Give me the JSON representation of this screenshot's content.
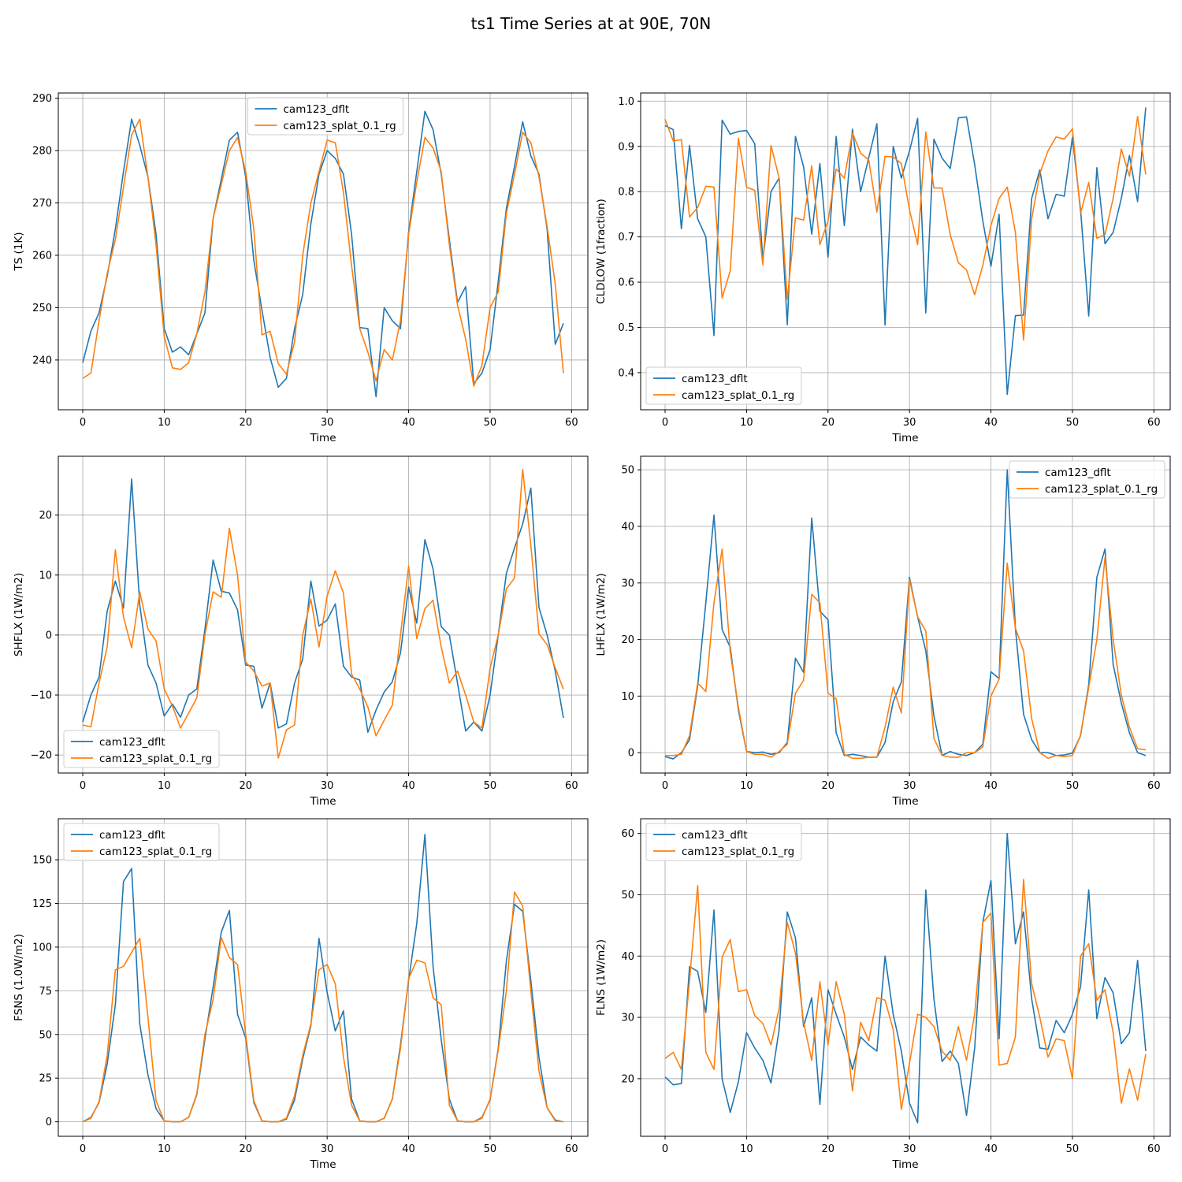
{
  "chart_data": {
    "title": "ts1 Time Series at at 90E, 70N",
    "legend_labels": [
      "cam123_dflt",
      "cam123_splat_0.1_rg"
    ],
    "colors": {
      "dflt": "#1f77b4",
      "splat": "#ff7f0e"
    },
    "panels": [
      {
        "type": "line",
        "ylabel": "TS (1K)",
        "xlabel": "Time",
        "xlim": [
          -3,
          62
        ],
        "ylim": [
          230.5,
          291
        ],
        "xticks": [
          0,
          10,
          20,
          30,
          40,
          50,
          60
        ],
        "yticks": [
          240,
          250,
          260,
          270,
          280,
          290
        ],
        "grid": true,
        "legend_loc": "upper center",
        "series": [
          {
            "name": "cam123_dflt",
            "values": [
              239.5,
              245.5,
              249,
              256,
              265,
              276,
              286,
              281,
              275,
              264,
              246,
              241.5,
              242.5,
              241,
              245,
              249,
              267,
              274.5,
              282,
              283.5,
              275,
              259,
              249.5,
              240.5,
              234.8,
              236.5,
              246,
              252.5,
              266,
              275.5,
              280,
              278.5,
              275.5,
              264,
              246.2,
              246,
              233,
              250,
              247.5,
              246,
              264.5,
              276,
              287.5,
              284,
              275.5,
              263,
              251,
              254,
              235.5,
              237.5,
              242,
              255,
              269,
              277,
              285.5,
              279,
              275.5,
              265,
              243,
              247
            ]
          },
          {
            "name": "cam123_splat_0.1_rg",
            "values": [
              236.5,
              237.5,
              247.5,
              256.5,
              263,
              273,
              283,
              286,
              275,
              262,
              244.5,
              238.5,
              238.2,
              239.5,
              245,
              253,
              267,
              273.5,
              280,
              282.5,
              276,
              265,
              244.8,
              245.5,
              239.3,
              237.3,
              243.5,
              260,
              270,
              276,
              282,
              281.5,
              272,
              258,
              246,
              241.5,
              236,
              242,
              240,
              247.5,
              264,
              274,
              282.5,
              280.5,
              276,
              262,
              250.5,
              244,
              235,
              239,
              250,
              253,
              268,
              275.5,
              283.5,
              281.5,
              275,
              265.5,
              254.5,
              237.5
            ]
          }
        ]
      },
      {
        "type": "line",
        "ylabel": "CLDLOW (1fraction)",
        "xlabel": "Time",
        "xlim": [
          -3,
          62
        ],
        "ylim": [
          0.318,
          1.018
        ],
        "xticks": [
          0,
          10,
          20,
          30,
          40,
          50,
          60
        ],
        "yticks": [
          0.4,
          0.5,
          0.6,
          0.7,
          0.8,
          0.9,
          1.0
        ],
        "ytick_labels": [
          "0.4",
          "0.5",
          "0.6",
          "0.7",
          "0.8",
          "0.9",
          "1.0"
        ],
        "grid": true,
        "legend_loc": "lower left",
        "series": [
          {
            "name": "cam123_dflt",
            "values": [
              0.946,
              0.937,
              0.718,
              0.902,
              0.74,
              0.7,
              0.482,
              0.958,
              0.927,
              0.933,
              0.935,
              0.906,
              0.65,
              0.8,
              0.83,
              0.506,
              0.922,
              0.855,
              0.706,
              0.862,
              0.655,
              0.922,
              0.725,
              0.938,
              0.8,
              0.875,
              0.95,
              0.505,
              0.9,
              0.83,
              0.89,
              0.962,
              0.532,
              0.916,
              0.874,
              0.851,
              0.963,
              0.965,
              0.86,
              0.735,
              0.635,
              0.75,
              0.352,
              0.526,
              0.527,
              0.785,
              0.848,
              0.74,
              0.794,
              0.79,
              0.92,
              0.76,
              0.525,
              0.853,
              0.685,
              0.71,
              0.785,
              0.88,
              0.778,
              0.986
            ]
          },
          {
            "name": "cam123_splat_0.1_rg",
            "values": [
              0.96,
              0.912,
              0.915,
              0.744,
              0.765,
              0.812,
              0.81,
              0.565,
              0.625,
              0.918,
              0.81,
              0.803,
              0.638,
              0.902,
              0.83,
              0.562,
              0.742,
              0.737,
              0.857,
              0.683,
              0.735,
              0.85,
              0.83,
              0.93,
              0.885,
              0.87,
              0.755,
              0.878,
              0.877,
              0.862,
              0.76,
              0.683,
              0.932,
              0.808,
              0.808,
              0.705,
              0.643,
              0.627,
              0.572,
              0.637,
              0.725,
              0.785,
              0.81,
              0.71,
              0.472,
              0.74,
              0.84,
              0.89,
              0.921,
              0.916,
              0.939,
              0.752,
              0.82,
              0.697,
              0.705,
              0.785,
              0.894,
              0.834,
              0.966,
              0.838
            ]
          }
        ]
      },
      {
        "type": "line",
        "ylabel": "SHFLX (1W/m2)",
        "xlabel": "Time",
        "xlim": [
          -3,
          62
        ],
        "ylim": [
          -23,
          29.8
        ],
        "xticks": [
          0,
          10,
          20,
          30,
          40,
          50,
          60
        ],
        "yticks": [
          -20,
          -10,
          0,
          10,
          20
        ],
        "ytick_labels": [
          "−20",
          "−10",
          "0",
          "10",
          "20"
        ],
        "grid": true,
        "legend_loc": "lower left",
        "series": [
          {
            "name": "cam123_dflt",
            "values": [
              -14.5,
              -10,
              -7,
              4,
              9,
              4.5,
              26,
              5,
              -5,
              -8,
              -13.5,
              -11.5,
              -13.7,
              -10,
              -9,
              1,
              12.5,
              7.3,
              7,
              4.2,
              -5,
              -5.2,
              -12.2,
              -8,
              -15.5,
              -14.8,
              -8,
              -4,
              9,
              1.5,
              2.5,
              5.2,
              -5.2,
              -7,
              -7.5,
              -16.2,
              -12.5,
              -9.5,
              -7.8,
              -3,
              8,
              2,
              15.9,
              11,
              1.4,
              0,
              -8,
              -16,
              -14.5,
              -16,
              -10,
              0,
              10.3,
              14.5,
              18.5,
              24.5,
              4.6,
              0,
              -6,
              -13.8
            ]
          },
          {
            "name": "cam123_splat_0.1_rg",
            "values": [
              -15,
              -15.3,
              -8,
              -2,
              14.2,
              3,
              -2.1,
              7.2,
              1,
              -1,
              -9,
              -11.8,
              -15.5,
              -13,
              -10.5,
              0,
              7.2,
              6.3,
              17.8,
              10,
              -4.5,
              -6,
              -8.5,
              -8,
              -20.5,
              -15.8,
              -15,
              0,
              6,
              -2,
              6.5,
              10.7,
              7,
              -6.5,
              -9,
              -12,
              -16.8,
              -14.2,
              -11.7,
              0,
              11.5,
              -0.6,
              4.4,
              5.8,
              -2,
              -8,
              -6,
              -10,
              -14.5,
              -15.5,
              -5.5,
              0,
              7.7,
              9.5,
              27.6,
              15,
              0.2,
              -1.6,
              -5.5,
              -9
            ]
          }
        ]
      },
      {
        "type": "line",
        "ylabel": "LHFLX (1W/m2)",
        "xlabel": "Time",
        "xlim": [
          -3,
          62
        ],
        "ylim": [
          -3.6,
          52.4
        ],
        "xticks": [
          0,
          10,
          20,
          30,
          40,
          50,
          60
        ],
        "yticks": [
          0,
          10,
          20,
          30,
          40,
          50
        ],
        "grid": true,
        "legend_loc": "upper right",
        "series": [
          {
            "name": "cam123_dflt",
            "values": [
              -0.7,
              -1.1,
              0,
              2.3,
              11.8,
              26.5,
              42,
              21.8,
              18.6,
              7.5,
              0.2,
              0,
              0.1,
              -0.3,
              0,
              1.8,
              16.7,
              14.2,
              41.5,
              25,
              23.5,
              3.5,
              -0.5,
              -0.3,
              -0.5,
              -0.8,
              -0.8,
              1.8,
              9,
              12.5,
              31,
              24,
              18,
              6.5,
              -0.5,
              0.2,
              -0.3,
              -0.5,
              0,
              1.5,
              14.3,
              13.1,
              50,
              22,
              6.8,
              2.3,
              0,
              0,
              -0.5,
              -0.4,
              -0.1,
              3,
              12,
              31,
              36,
              15.6,
              8.8,
              3.5,
              0,
              -0.5
            ]
          },
          {
            "name": "cam123_splat_0.1_rg",
            "values": [
              -0.5,
              -0.5,
              -0.3,
              3,
              12.3,
              10.8,
              26.5,
              36,
              17.8,
              8,
              0.2,
              -0.3,
              -0.3,
              -0.8,
              0.2,
              1.5,
              10.5,
              12.8,
              28,
              26.5,
              10.5,
              9.5,
              -0.3,
              -1,
              -1,
              -0.8,
              -0.8,
              4.5,
              11.6,
              7,
              30.6,
              24,
              21.5,
              2.5,
              -0.5,
              -0.8,
              -0.8,
              0,
              0,
              1,
              10,
              13,
              33.5,
              22,
              18,
              6,
              0,
              -1,
              -0.5,
              -0.7,
              -0.5,
              3.1,
              11.5,
              20,
              34.5,
              20,
              10.2,
              4.5,
              0.7,
              0.5
            ]
          }
        ]
      },
      {
        "type": "line",
        "ylabel": "FSNS (1.0W/m2)",
        "xlabel": "Time",
        "xlim": [
          -3,
          62
        ],
        "ylim": [
          -8.3,
          173.5
        ],
        "xticks": [
          0,
          10,
          20,
          30,
          40,
          50,
          60
        ],
        "yticks": [
          0,
          25,
          50,
          75,
          100,
          125,
          150
        ],
        "grid": true,
        "legend_loc": "upper left",
        "series": [
          {
            "name": "cam123_dflt",
            "values": [
              0,
              2.5,
              11,
              33,
              67,
              137.5,
              145,
              56,
              27,
              7.5,
              0.5,
              0,
              0,
              2.5,
              15.5,
              47.5,
              77,
              108.5,
              121,
              61.5,
              48,
              11,
              0.5,
              0,
              0,
              1.5,
              12.5,
              36,
              55,
              105,
              74,
              52,
              63.5,
              13,
              0.5,
              0,
              0,
              2,
              13,
              44,
              81,
              113.5,
              164.5,
              89,
              47,
              13,
              0.5,
              0,
              0,
              2.5,
              12.5,
              42,
              92,
              124.5,
              120.5,
              81,
              37,
              8,
              1,
              0
            ]
          },
          {
            "name": "cam123_splat_0.1_rg",
            "values": [
              0,
              2,
              11.5,
              38,
              87,
              89,
              97,
              105,
              60,
              12,
              0.5,
              0,
              0,
              2.5,
              16,
              50,
              70,
              105.5,
              94,
              90,
              50,
              12,
              0.5,
              0,
              0,
              2,
              15,
              38,
              56,
              87,
              90,
              79,
              37,
              9.5,
              0.5,
              0,
              0,
              2,
              13,
              42,
              82,
              92.5,
              91,
              71,
              67,
              9.5,
              0.5,
              0,
              0,
              2,
              13,
              41,
              75,
              131.5,
              123.5,
              75,
              29,
              8,
              0.5,
              0
            ]
          }
        ]
      },
      {
        "type": "line",
        "ylabel": "FLNS (1W/m2)",
        "xlabel": "Time",
        "xlim": [
          -3,
          62
        ],
        "ylim": [
          10.6,
          62.4
        ],
        "xticks": [
          0,
          10,
          20,
          30,
          40,
          50,
          60
        ],
        "yticks": [
          20,
          30,
          40,
          50,
          60
        ],
        "grid": true,
        "legend_loc": "upper left",
        "series": [
          {
            "name": "cam123_dflt",
            "values": [
              20.3,
              19,
              19.2,
              38.3,
              37.5,
              30.8,
              47.5,
              20,
              14.5,
              19.5,
              27.5,
              25,
              23,
              19.3,
              28,
              47.2,
              43,
              28.5,
              33.2,
              15.8,
              34.5,
              30.5,
              26.8,
              21.5,
              26.8,
              25.5,
              24.5,
              40,
              30.5,
              24.5,
              16,
              12.8,
              50.8,
              33,
              22.8,
              24.5,
              22.5,
              14,
              25,
              45.5,
              52.3,
              26.5,
              60,
              42,
              47.2,
              33,
              25,
              24.8,
              29.5,
              27.5,
              30.5,
              35,
              50.8,
              29.8,
              36.5,
              34,
              25.7,
              27.5,
              39.3,
              24.5
            ]
          },
          {
            "name": "cam123_splat_0.1_rg",
            "values": [
              23.3,
              24.3,
              21.5,
              36,
              51.5,
              24.3,
              21.5,
              39.8,
              42.7,
              34.2,
              34.5,
              30.3,
              29,
              25.5,
              31.5,
              45.5,
              40.5,
              29.2,
              23,
              35.8,
              25.5,
              35.8,
              30.5,
              18,
              29.2,
              26.2,
              33.2,
              32.8,
              28,
              15,
              22.5,
              30.5,
              30,
              28.5,
              24.5,
              23,
              28.5,
              23,
              30.5,
              45.5,
              47,
              22.2,
              22.5,
              26.8,
              52.5,
              35.5,
              30,
              23.5,
              26.5,
              26.2,
              20,
              40,
              42,
              32.8,
              34.5,
              27.5,
              16,
              21.6,
              16.5,
              24
            ]
          }
        ]
      }
    ]
  }
}
